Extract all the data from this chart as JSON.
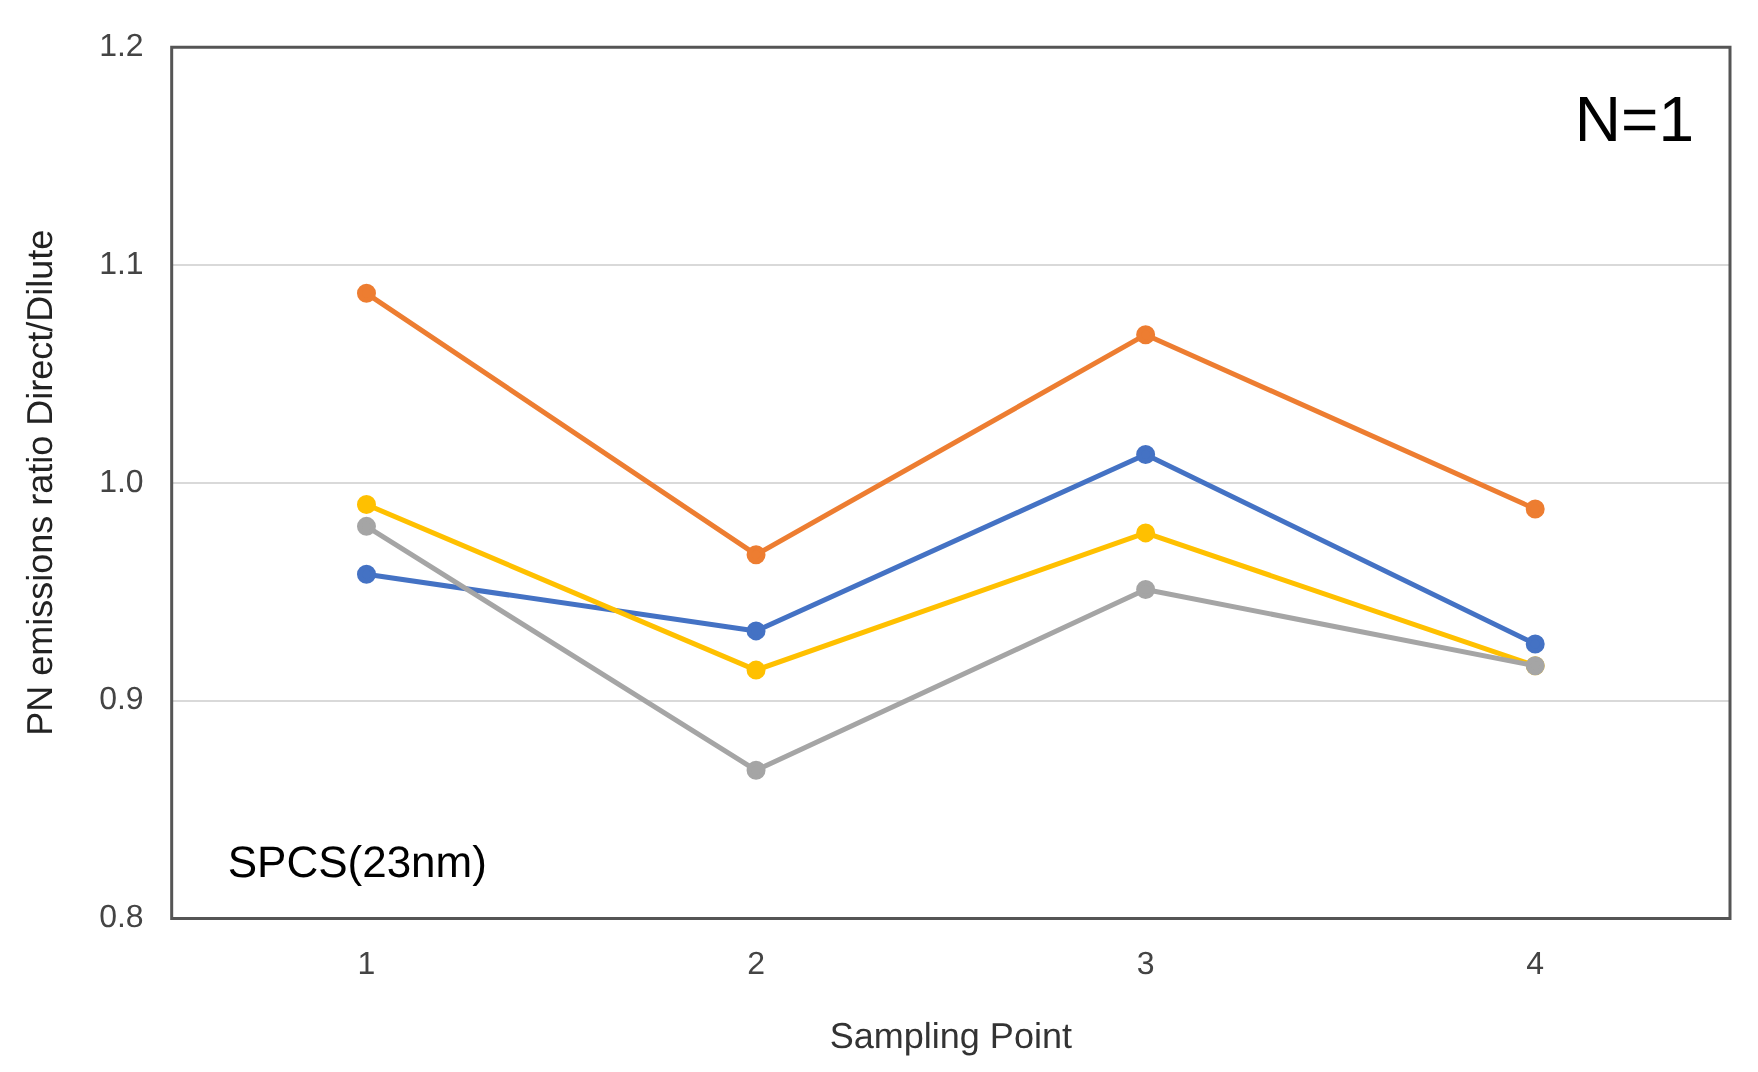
{
  "chart_data": {
    "type": "line",
    "xlabel": "Sampling Point",
    "ylabel": "PN emissions ratio Direct/Dilute",
    "categories": [
      "1",
      "2",
      "3",
      "4"
    ],
    "series": [
      {
        "color": "#ed7d31",
        "values": [
          1.087,
          0.967,
          1.068,
          0.988
        ]
      },
      {
        "color": "#4472c4",
        "values": [
          0.958,
          0.932,
          1.013,
          0.926
        ]
      },
      {
        "color": "#ffc000",
        "values": [
          0.99,
          0.914,
          0.977,
          0.916
        ]
      },
      {
        "color": "#a5a5a5",
        "values": [
          0.98,
          0.868,
          0.951,
          0.916
        ]
      }
    ],
    "ylim": [
      0.8,
      1.2
    ],
    "yticks": [
      {
        "value": 0.8,
        "label": "0.8"
      },
      {
        "value": 0.9,
        "label": "0.9"
      },
      {
        "value": 1.0,
        "label": "1.0"
      },
      {
        "value": 1.1,
        "label": "1.1"
      },
      {
        "value": 1.2,
        "label": "1.2"
      }
    ],
    "grid": "y",
    "legend": false,
    "marker": "circle",
    "line_style": "solid",
    "annotations": [
      "N=1",
      "SPCS(23nm)"
    ]
  }
}
